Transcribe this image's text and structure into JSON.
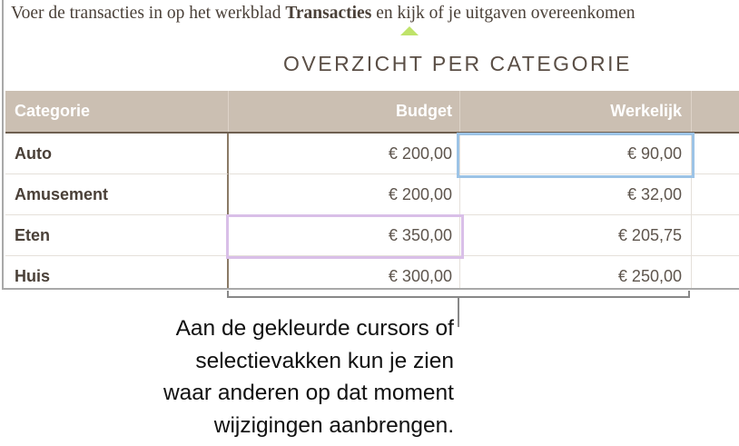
{
  "intro": {
    "before": "Voer de transacties in op het werkblad ",
    "bold": "Transacties",
    "after": " en kijk of je uitgaven overeenkomen"
  },
  "title": "OVERZICHT PER CATEGORIE",
  "table": {
    "headers": [
      "Categorie",
      "Budget",
      "Werkelijk"
    ],
    "rows": [
      {
        "categorie": "Auto",
        "budget": "€ 200,00",
        "werkelijk": "€ 90,00"
      },
      {
        "categorie": "Amusement",
        "budget": "€ 200,00",
        "werkelijk": "€ 32,00"
      },
      {
        "categorie": "Eten",
        "budget": "€ 350,00",
        "werkelijk": "€ 205,75"
      },
      {
        "categorie": "Huis",
        "budget": "€ 300,00",
        "werkelijk": "€ 250,00"
      }
    ]
  },
  "colors": {
    "header_bg": "#cbbfb2",
    "collaborator_blue": "#9cc3e6",
    "collaborator_purple": "#d9bfe8",
    "cursor_marker": "#bfe36a"
  },
  "caption": [
    "Aan de gekleurde cursors of",
    "selectievakken kun je zien",
    "waar anderen op dat moment",
    "wijzigingen aanbrengen."
  ]
}
